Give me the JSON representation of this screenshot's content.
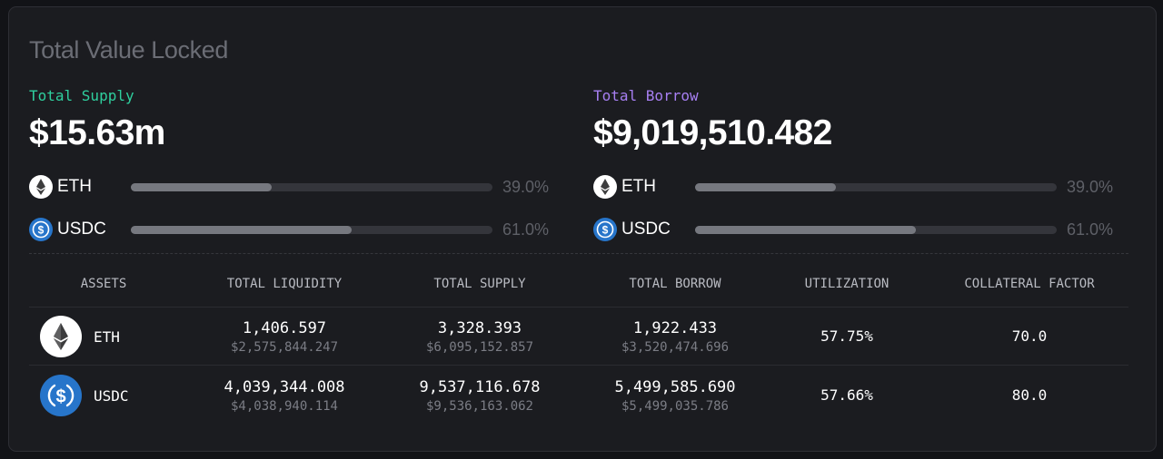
{
  "card": {
    "title": "Total Value Locked"
  },
  "supply": {
    "label": "Total Supply",
    "value": "$15.63m",
    "label_color": "#2fcf9e",
    "assets": [
      {
        "name": "ETH",
        "icon": "eth-icon",
        "percent_label": "39.0%",
        "fraction": 0.39
      },
      {
        "name": "USDC",
        "icon": "usdc-icon",
        "percent_label": "61.0%",
        "fraction": 0.61
      }
    ]
  },
  "borrow": {
    "label": "Total Borrow",
    "value": "$9,019,510.482",
    "label_color": "#a77ff2",
    "assets": [
      {
        "name": "ETH",
        "icon": "eth-icon",
        "percent_label": "39.0%",
        "fraction": 0.39
      },
      {
        "name": "USDC",
        "icon": "usdc-icon",
        "percent_label": "61.0%",
        "fraction": 0.61
      }
    ]
  },
  "table": {
    "headers": [
      "ASSETS",
      "TOTAL LIQUIDITY",
      "TOTAL SUPPLY",
      "TOTAL BORROW",
      "UTILIZATION",
      "COLLATERAL FACTOR"
    ],
    "rows": [
      {
        "asset": "ETH",
        "icon": "eth-icon",
        "liquidity": "1,406.597",
        "liquidity_usd": "$2,575,844.247",
        "supply": "3,328.393",
        "supply_usd": "$6,095,152.857",
        "borrow": "1,922.433",
        "borrow_usd": "$3,520,474.696",
        "utilization": "57.75%",
        "collateral_factor": "70.0"
      },
      {
        "asset": "USDC",
        "icon": "usdc-icon",
        "liquidity": "4,039,344.008",
        "liquidity_usd": "$4,038,940.114",
        "supply": "9,537,116.678",
        "supply_usd": "$9,536,163.062",
        "borrow": "5,499,585.690",
        "borrow_usd": "$5,499,035.786",
        "utilization": "57.66%",
        "collateral_factor": "80.0"
      }
    ]
  },
  "colors": {
    "background": "#1b1c20",
    "bar_fill": "#76787f",
    "usdc_blue": "#2775ca"
  }
}
